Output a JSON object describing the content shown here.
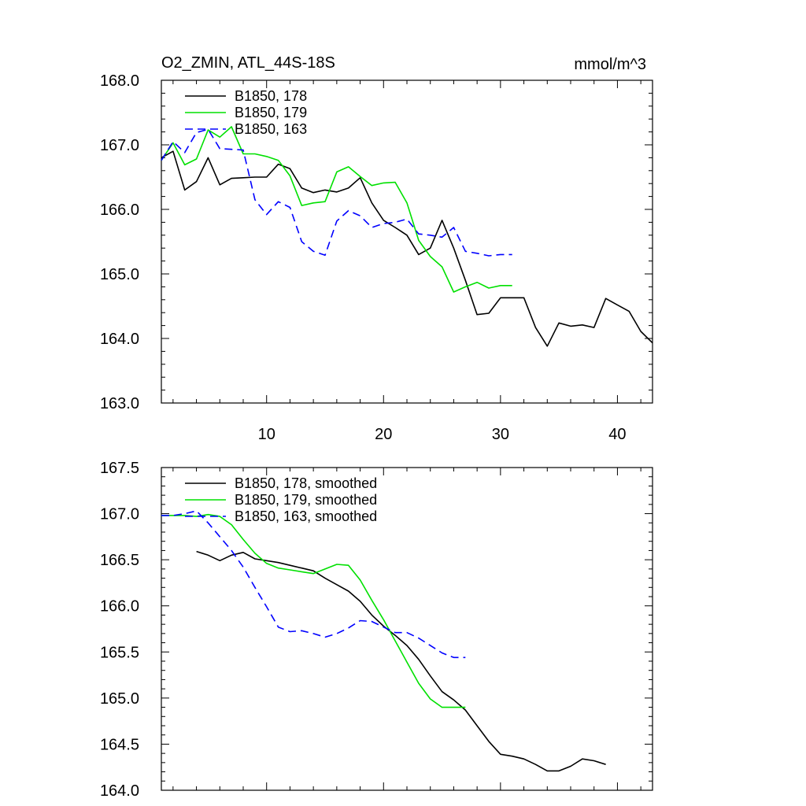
{
  "chart_data": [
    {
      "type": "line",
      "title": "O2_ZMIN, ATL_44S-18S",
      "units": "mmol/m^3",
      "xlim": [
        1,
        43
      ],
      "ylim": [
        163.0,
        168.0
      ],
      "x_ticks": [
        10,
        20,
        30,
        40
      ],
      "x_tick_labels": [
        "10",
        "20",
        "30",
        "40"
      ],
      "y_ticks": [
        163.0,
        164.0,
        165.0,
        166.0,
        167.0,
        168.0
      ],
      "y_tick_labels": [
        "163.0",
        "164.0",
        "165.0",
        "166.0",
        "167.0",
        "168.0"
      ],
      "legend_position": "top-left",
      "series": [
        {
          "name": "B1850, 178",
          "color": "#000000",
          "dash": "solid",
          "x": [
            1,
            2,
            3,
            4,
            5,
            6,
            7,
            8,
            9,
            10,
            11,
            12,
            13,
            14,
            15,
            16,
            17,
            18,
            19,
            20,
            21,
            22,
            23,
            24,
            25,
            26,
            27,
            28,
            29,
            30,
            31,
            32,
            33,
            34,
            35,
            36,
            37,
            38,
            39,
            40,
            41,
            42,
            43
          ],
          "values": [
            166.8,
            166.9,
            166.3,
            166.43,
            166.8,
            166.38,
            166.48,
            166.49,
            166.5,
            166.5,
            166.7,
            166.63,
            166.33,
            166.26,
            166.3,
            166.27,
            166.33,
            166.49,
            166.1,
            165.83,
            165.72,
            165.6,
            165.3,
            165.4,
            165.83,
            165.4,
            164.9,
            164.37,
            164.39,
            164.63,
            164.63,
            164.63,
            164.17,
            163.88,
            164.24,
            164.19,
            164.21,
            164.17,
            164.62,
            164.52,
            164.42,
            164.11,
            163.93
          ]
        },
        {
          "name": "B1850, 179",
          "color": "#00e000",
          "dash": "solid",
          "x": [
            1,
            2,
            3,
            4,
            5,
            6,
            7,
            8,
            9,
            10,
            11,
            12,
            13,
            14,
            15,
            16,
            17,
            18,
            19,
            20,
            21,
            22,
            23,
            24,
            25,
            26,
            27,
            28,
            29,
            30,
            31
          ],
          "values": [
            166.76,
            167.03,
            166.69,
            166.78,
            167.23,
            167.12,
            167.28,
            166.86,
            166.86,
            166.82,
            166.76,
            166.52,
            166.06,
            166.1,
            166.12,
            166.58,
            166.66,
            166.51,
            166.37,
            166.41,
            166.42,
            166.1,
            165.52,
            165.27,
            165.11,
            164.72,
            164.8,
            164.87,
            164.78,
            164.82,
            164.82
          ]
        },
        {
          "name": "B1850, 163",
          "color": "#0000ff",
          "dash": "dashed",
          "x": [
            1,
            2,
            3,
            4,
            5,
            6,
            7,
            8,
            9,
            10,
            11,
            12,
            13,
            14,
            15,
            16,
            17,
            18,
            19,
            20,
            21,
            22,
            23,
            24,
            25,
            26,
            27,
            28,
            29,
            30,
            31
          ],
          "values": [
            166.76,
            167.05,
            166.88,
            167.19,
            167.24,
            166.94,
            166.93,
            166.92,
            166.15,
            165.92,
            166.12,
            166.03,
            165.5,
            165.35,
            165.29,
            165.82,
            165.98,
            165.9,
            165.72,
            165.78,
            165.8,
            165.85,
            165.62,
            165.6,
            165.57,
            165.72,
            165.35,
            165.32,
            165.28,
            165.3,
            165.3
          ]
        }
      ]
    },
    {
      "type": "line",
      "xlim": [
        1,
        43
      ],
      "ylim": [
        164.0,
        167.5
      ],
      "y_ticks": [
        164.0,
        164.5,
        165.0,
        165.5,
        166.0,
        166.5,
        167.0,
        167.5
      ],
      "y_tick_labels": [
        "164.0",
        "164.5",
        "165.0",
        "165.5",
        "166.0",
        "166.5",
        "167.0",
        "167.5"
      ],
      "legend_position": "top-left",
      "series": [
        {
          "name": "B1850, 178, smoothed",
          "color": "#000000",
          "dash": "solid",
          "x": [
            4,
            5,
            6,
            7,
            8,
            9,
            10,
            11,
            12,
            13,
            14,
            15,
            16,
            17,
            18,
            19,
            20,
            21,
            22,
            23,
            24,
            25,
            26,
            27,
            28,
            29,
            30,
            31,
            32,
            33,
            34,
            35,
            36,
            37,
            38,
            39
          ],
          "values": [
            166.59,
            166.55,
            166.49,
            166.55,
            166.58,
            166.51,
            166.49,
            166.47,
            166.44,
            166.41,
            166.38,
            166.3,
            166.23,
            166.16,
            166.05,
            165.9,
            165.78,
            165.68,
            165.57,
            165.42,
            165.24,
            165.07,
            164.98,
            164.87,
            164.7,
            164.53,
            164.39,
            164.37,
            164.34,
            164.28,
            164.21,
            164.21,
            164.26,
            164.34,
            164.32,
            164.28
          ]
        },
        {
          "name": "B1850, 179, smoothed",
          "color": "#00e000",
          "dash": "solid",
          "x": [
            1,
            2,
            3,
            4,
            5,
            6,
            7,
            8,
            9,
            10,
            11,
            12,
            13,
            14,
            15,
            16,
            17,
            18,
            19,
            20,
            21,
            22,
            23,
            24,
            25,
            26,
            27
          ],
          "values": [
            166.98,
            166.98,
            166.98,
            166.97,
            166.99,
            166.97,
            166.88,
            166.72,
            166.57,
            166.46,
            166.41,
            166.39,
            166.37,
            166.35,
            166.4,
            166.45,
            166.44,
            166.28,
            166.06,
            165.85,
            165.62,
            165.39,
            165.16,
            164.99,
            164.9,
            164.9,
            164.9
          ]
        },
        {
          "name": "B1850, 163, smoothed",
          "color": "#0000ff",
          "dash": "dashed",
          "x": [
            1,
            2,
            3,
            4,
            5,
            6,
            7,
            8,
            9,
            10,
            11,
            12,
            13,
            14,
            15,
            16,
            17,
            18,
            19,
            20,
            21,
            22,
            23,
            24,
            25,
            26,
            27
          ],
          "values": [
            166.98,
            166.98,
            167.0,
            167.03,
            166.9,
            166.75,
            166.6,
            166.42,
            166.2,
            165.99,
            165.77,
            165.72,
            165.73,
            165.7,
            165.66,
            165.7,
            165.76,
            165.84,
            165.83,
            165.77,
            165.71,
            165.71,
            165.65,
            165.57,
            165.49,
            165.44,
            165.44
          ]
        }
      ]
    }
  ]
}
